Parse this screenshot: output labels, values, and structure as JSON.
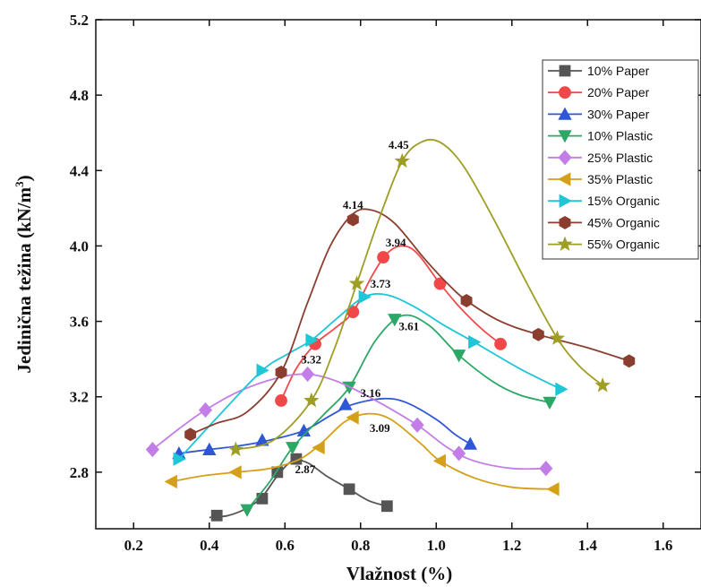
{
  "chart_data": {
    "type": "line",
    "xlabel": "Vlažnost (%)",
    "ylabel_main": "Jedinična težina (kN/m",
    "ylabel_sup": "3",
    "ylabel_end": ")",
    "xlim": [
      0.1,
      1.7
    ],
    "ylim": [
      2.5,
      5.2
    ],
    "xticks": [
      0.2,
      0.4,
      0.6,
      0.8,
      1.0,
      1.2,
      1.4,
      1.6
    ],
    "xtick_labels": [
      "0.2",
      "0.4",
      "0.6",
      "0.8",
      "1.0",
      "1.2",
      "1.4",
      "1.6"
    ],
    "yticks": [
      2.8,
      3.2,
      3.6,
      4.0,
      4.4,
      4.8,
      5.2
    ],
    "ytick_labels": [
      "2.8",
      "3.2",
      "3.6",
      "4.0",
      "4.4",
      "4.8",
      "5.2"
    ],
    "legend_position": "top-right",
    "series": [
      {
        "name": "10% Paper",
        "color": "#555555",
        "marker": "square",
        "points": [
          [
            0.42,
            2.57
          ],
          [
            0.54,
            2.66
          ],
          [
            0.58,
            2.8
          ],
          [
            0.63,
            2.87
          ],
          [
            0.77,
            2.71
          ],
          [
            0.87,
            2.62
          ]
        ],
        "curve": [
          [
            0.4,
            2.56
          ],
          [
            0.45,
            2.57
          ],
          [
            0.5,
            2.61
          ],
          [
            0.54,
            2.67
          ],
          [
            0.58,
            2.78
          ],
          [
            0.62,
            2.86
          ],
          [
            0.66,
            2.85
          ],
          [
            0.71,
            2.78
          ],
          [
            0.77,
            2.71
          ],
          [
            0.82,
            2.65
          ],
          [
            0.87,
            2.62
          ]
        ]
      },
      {
        "name": "20% Paper",
        "color": "#f04848",
        "marker": "circle",
        "points": [
          [
            0.59,
            3.18
          ],
          [
            0.68,
            3.48
          ],
          [
            0.78,
            3.65
          ],
          [
            0.86,
            3.94
          ],
          [
            1.01,
            3.8
          ],
          [
            1.17,
            3.48
          ]
        ],
        "curve": [
          [
            0.59,
            3.18
          ],
          [
            0.63,
            3.35
          ],
          [
            0.68,
            3.48
          ],
          [
            0.73,
            3.56
          ],
          [
            0.78,
            3.65
          ],
          [
            0.83,
            3.84
          ],
          [
            0.87,
            3.96
          ],
          [
            0.91,
            4.0
          ],
          [
            0.95,
            3.96
          ],
          [
            1.01,
            3.8
          ],
          [
            1.06,
            3.68
          ],
          [
            1.12,
            3.56
          ],
          [
            1.17,
            3.48
          ]
        ]
      },
      {
        "name": "30% Paper",
        "color": "#2f56d6",
        "marker": "triangle-up",
        "points": [
          [
            0.32,
            2.9
          ],
          [
            0.4,
            2.92
          ],
          [
            0.54,
            2.97
          ],
          [
            0.65,
            3.02
          ],
          [
            0.76,
            3.16
          ],
          [
            1.09,
            2.95
          ]
        ],
        "curve": [
          [
            0.32,
            2.9
          ],
          [
            0.4,
            2.92
          ],
          [
            0.48,
            2.94
          ],
          [
            0.56,
            2.97
          ],
          [
            0.65,
            3.02
          ],
          [
            0.72,
            3.1
          ],
          [
            0.78,
            3.16
          ],
          [
            0.86,
            3.19
          ],
          [
            0.92,
            3.17
          ],
          [
            1.0,
            3.08
          ],
          [
            1.05,
            3.0
          ],
          [
            1.09,
            2.95
          ]
        ]
      },
      {
        "name": "10% Plastic",
        "color": "#2ca866",
        "marker": "triangle-down",
        "points": [
          [
            0.5,
            2.6
          ],
          [
            0.62,
            2.93
          ],
          [
            0.77,
            3.25
          ],
          [
            0.89,
            3.61
          ],
          [
            1.06,
            3.42
          ],
          [
            1.3,
            3.17
          ]
        ],
        "curve": [
          [
            0.5,
            2.6
          ],
          [
            0.56,
            2.75
          ],
          [
            0.62,
            2.93
          ],
          [
            0.7,
            3.1
          ],
          [
            0.77,
            3.25
          ],
          [
            0.84,
            3.5
          ],
          [
            0.91,
            3.63
          ],
          [
            0.98,
            3.58
          ],
          [
            1.06,
            3.42
          ],
          [
            1.15,
            3.28
          ],
          [
            1.22,
            3.21
          ],
          [
            1.3,
            3.17
          ]
        ]
      },
      {
        "name": "25% Plastic",
        "color": "#c27ee6",
        "marker": "diamond",
        "points": [
          [
            0.25,
            2.92
          ],
          [
            0.39,
            3.13
          ],
          [
            0.66,
            3.32
          ],
          [
            0.95,
            3.05
          ],
          [
            1.06,
            2.9
          ],
          [
            1.29,
            2.82
          ]
        ],
        "curve": [
          [
            0.25,
            2.92
          ],
          [
            0.32,
            3.03
          ],
          [
            0.39,
            3.13
          ],
          [
            0.48,
            3.23
          ],
          [
            0.58,
            3.3
          ],
          [
            0.66,
            3.32
          ],
          [
            0.74,
            3.28
          ],
          [
            0.84,
            3.18
          ],
          [
            0.95,
            3.05
          ],
          [
            1.03,
            2.93
          ],
          [
            1.1,
            2.86
          ],
          [
            1.2,
            2.82
          ],
          [
            1.29,
            2.82
          ]
        ]
      },
      {
        "name": "35% Plastic",
        "color": "#d4a017",
        "marker": "triangle-left",
        "points": [
          [
            0.3,
            2.75
          ],
          [
            0.47,
            2.8
          ],
          [
            0.69,
            2.93
          ],
          [
            0.78,
            3.09
          ],
          [
            1.01,
            2.86
          ],
          [
            1.31,
            2.71
          ]
        ],
        "curve": [
          [
            0.3,
            2.75
          ],
          [
            0.38,
            2.78
          ],
          [
            0.47,
            2.8
          ],
          [
            0.56,
            2.82
          ],
          [
            0.64,
            2.87
          ],
          [
            0.7,
            2.96
          ],
          [
            0.76,
            3.07
          ],
          [
            0.82,
            3.11
          ],
          [
            0.88,
            3.08
          ],
          [
            0.96,
            2.95
          ],
          [
            1.01,
            2.86
          ],
          [
            1.1,
            2.77
          ],
          [
            1.2,
            2.72
          ],
          [
            1.31,
            2.71
          ]
        ]
      },
      {
        "name": "15% Organic",
        "color": "#1ec6d6",
        "marker": "triangle-right",
        "points": [
          [
            0.32,
            2.87
          ],
          [
            0.54,
            3.34
          ],
          [
            0.67,
            3.5
          ],
          [
            0.81,
            3.73
          ],
          [
            1.1,
            3.49
          ],
          [
            1.33,
            3.24
          ]
        ],
        "curve": [
          [
            0.32,
            2.87
          ],
          [
            0.43,
            3.11
          ],
          [
            0.54,
            3.34
          ],
          [
            0.61,
            3.43
          ],
          [
            0.67,
            3.5
          ],
          [
            0.74,
            3.62
          ],
          [
            0.81,
            3.73
          ],
          [
            0.87,
            3.74
          ],
          [
            0.94,
            3.68
          ],
          [
            1.02,
            3.58
          ],
          [
            1.1,
            3.49
          ],
          [
            1.22,
            3.35
          ],
          [
            1.33,
            3.24
          ]
        ]
      },
      {
        "name": "45% Organic",
        "color": "#8b3e2f",
        "marker": "hexagon",
        "points": [
          [
            0.35,
            3.0
          ],
          [
            0.59,
            3.33
          ],
          [
            0.78,
            4.14
          ],
          [
            1.08,
            3.71
          ],
          [
            1.27,
            3.53
          ],
          [
            1.51,
            3.39
          ]
        ],
        "curve": [
          [
            0.35,
            3.0
          ],
          [
            0.42,
            3.06
          ],
          [
            0.5,
            3.12
          ],
          [
            0.59,
            3.33
          ],
          [
            0.66,
            3.7
          ],
          [
            0.72,
            4.0
          ],
          [
            0.78,
            4.17
          ],
          [
            0.83,
            4.19
          ],
          [
            0.89,
            4.12
          ],
          [
            0.97,
            3.93
          ],
          [
            1.03,
            3.8
          ],
          [
            1.08,
            3.71
          ],
          [
            1.17,
            3.6
          ],
          [
            1.27,
            3.53
          ],
          [
            1.4,
            3.46
          ],
          [
            1.51,
            3.39
          ]
        ]
      },
      {
        "name": "55% Organic",
        "color": "#9e9e24",
        "marker": "star",
        "points": [
          [
            0.47,
            2.92
          ],
          [
            0.67,
            3.18
          ],
          [
            0.79,
            3.8
          ],
          [
            0.91,
            4.45
          ],
          [
            1.32,
            3.51
          ],
          [
            1.44,
            3.26
          ]
        ],
        "curve": [
          [
            0.47,
            2.92
          ],
          [
            0.57,
            2.97
          ],
          [
            0.67,
            3.18
          ],
          [
            0.73,
            3.45
          ],
          [
            0.79,
            3.8
          ],
          [
            0.85,
            4.15
          ],
          [
            0.91,
            4.45
          ],
          [
            0.96,
            4.55
          ],
          [
            1.01,
            4.55
          ],
          [
            1.07,
            4.43
          ],
          [
            1.15,
            4.15
          ],
          [
            1.24,
            3.8
          ],
          [
            1.32,
            3.51
          ],
          [
            1.38,
            3.36
          ],
          [
            1.44,
            3.26
          ]
        ]
      }
    ],
    "annotations": [
      {
        "text": "4.45",
        "x": 0.91,
        "y": 4.45
      },
      {
        "text": "4.14",
        "x": 0.78,
        "y": 4.14
      },
      {
        "text": "3.94",
        "x": 0.86,
        "y": 3.94
      },
      {
        "text": "3.73",
        "x": 0.81,
        "y": 3.73
      },
      {
        "text": "3.61",
        "x": 0.89,
        "y": 3.61
      },
      {
        "text": "3.32",
        "x": 0.66,
        "y": 3.32
      },
      {
        "text": "3.16",
        "x": 0.76,
        "y": 3.16
      },
      {
        "text": "3.09",
        "x": 0.78,
        "y": 3.09
      },
      {
        "text": "2.87",
        "x": 0.63,
        "y": 2.87
      }
    ]
  }
}
